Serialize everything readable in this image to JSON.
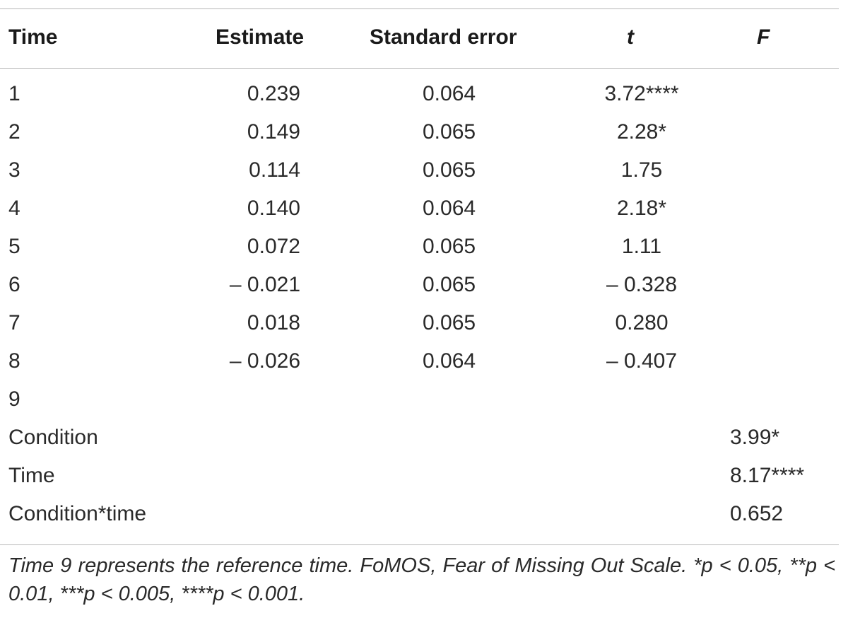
{
  "table": {
    "headers": {
      "time": "Time",
      "estimate": "Estimate",
      "standard_error": "Standard error",
      "t": "t",
      "f": "F"
    },
    "rows": [
      {
        "time": "1",
        "estimate": "0.239",
        "se": "0.064",
        "t": "3.72****",
        "f": ""
      },
      {
        "time": "2",
        "estimate": "0.149",
        "se": "0.065",
        "t": "2.28*",
        "f": ""
      },
      {
        "time": "3",
        "estimate": "0.114",
        "se": "0.065",
        "t": "1.75",
        "f": ""
      },
      {
        "time": "4",
        "estimate": "0.140",
        "se": "0.064",
        "t": "2.18*",
        "f": ""
      },
      {
        "time": "5",
        "estimate": "0.072",
        "se": "0.065",
        "t": "1.11",
        "f": ""
      },
      {
        "time": "6",
        "estimate": "– 0.021",
        "se": "0.065",
        "t": "– 0.328",
        "f": ""
      },
      {
        "time": "7",
        "estimate": "0.018",
        "se": "0.065",
        "t": "0.280",
        "f": ""
      },
      {
        "time": "8",
        "estimate": "– 0.026",
        "se": "0.064",
        "t": "– 0.407",
        "f": ""
      },
      {
        "time": "9",
        "estimate": "",
        "se": "",
        "t": "",
        "f": ""
      },
      {
        "time": "Condition",
        "estimate": "",
        "se": "",
        "t": "",
        "f": "3.99*"
      },
      {
        "time": "Time",
        "estimate": "",
        "se": "",
        "t": "",
        "f": "8.17****"
      },
      {
        "time": "Condition*time",
        "estimate": "",
        "se": "",
        "t": "",
        "f": "0.652"
      }
    ],
    "footnote": "Time 9 represents the reference time. FoMOS, Fear of Missing Out Scale. *p < 0.05, **p < 0.01, ***p < 0.005, ****p < 0.001."
  }
}
